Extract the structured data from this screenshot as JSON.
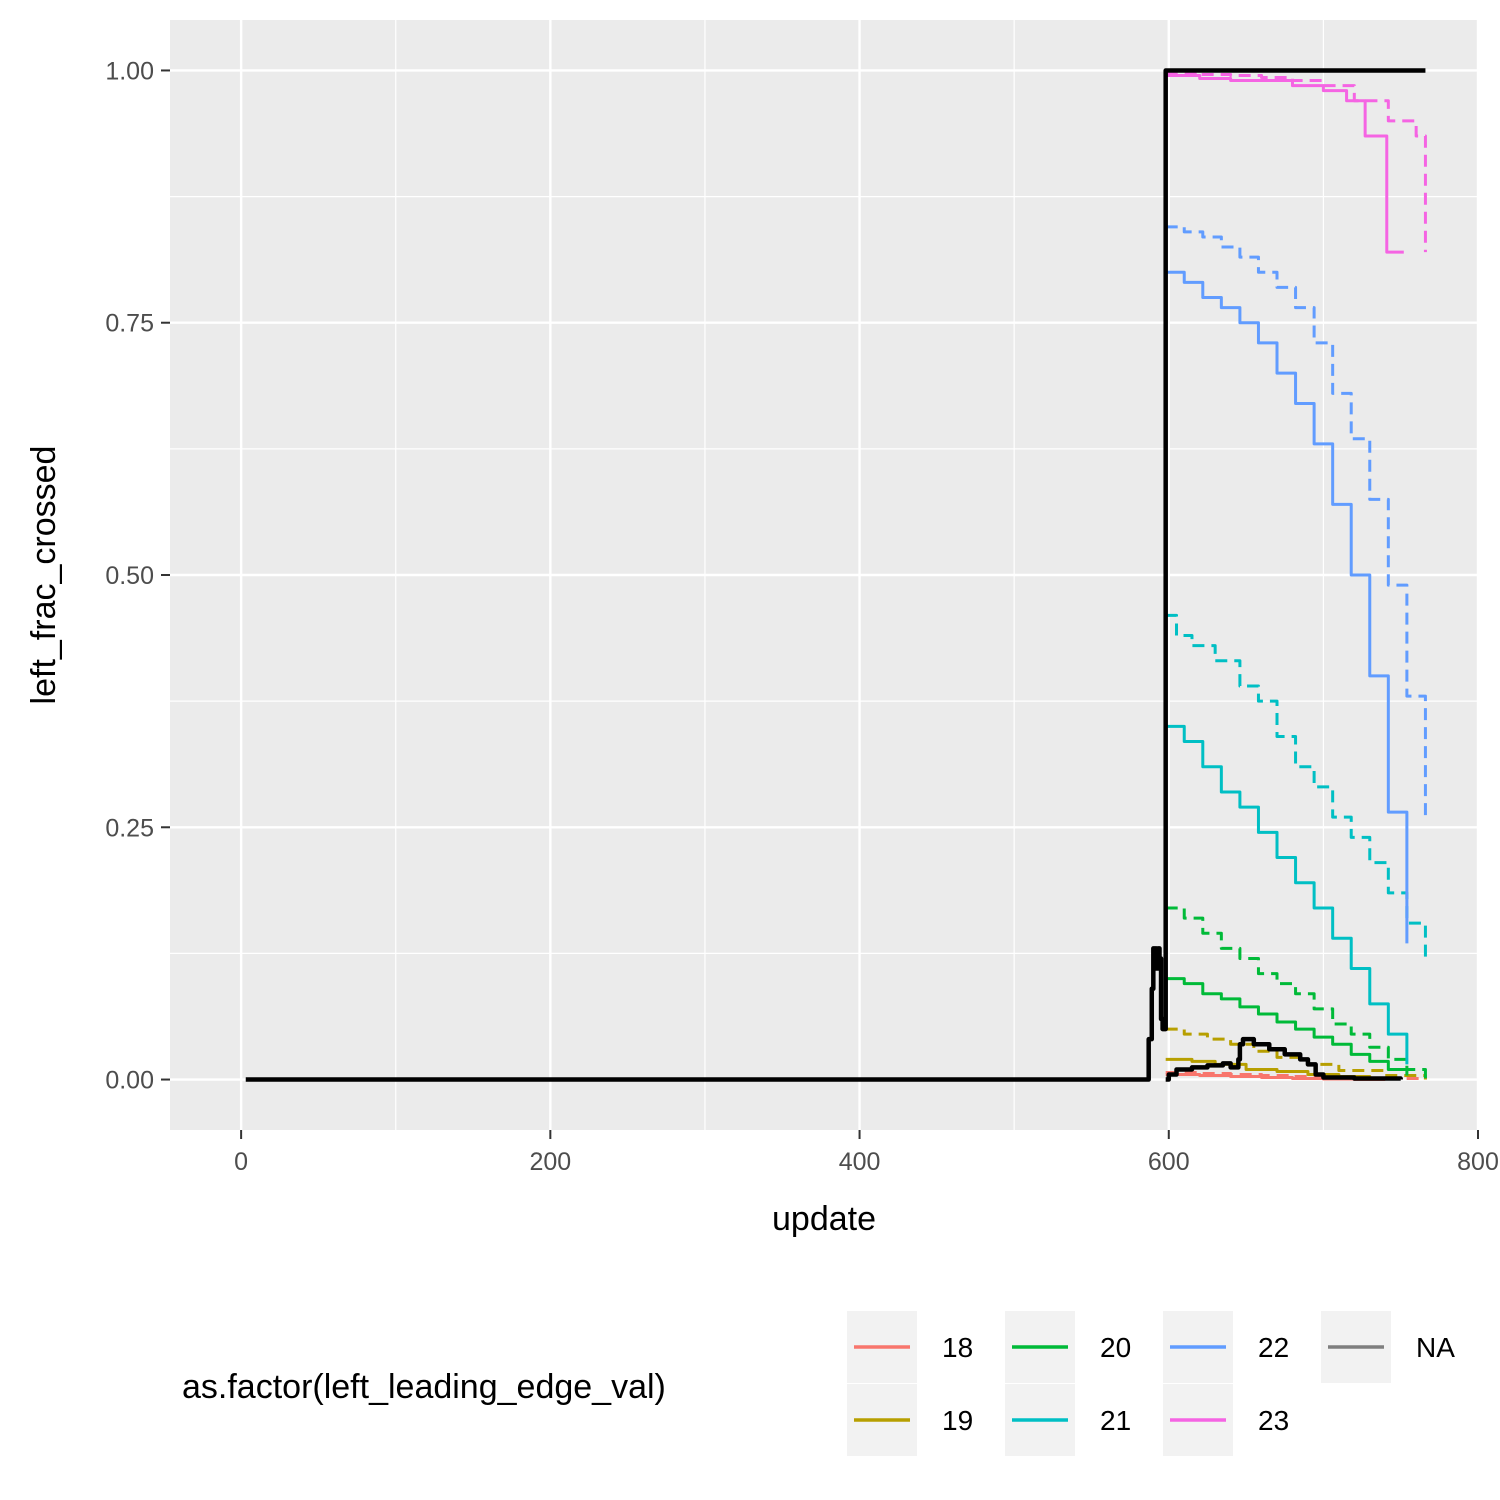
{
  "chart_data": {
    "type": "line",
    "title": "",
    "xlabel": "update",
    "ylabel": "left_frac_crossed",
    "xlim": [
      -46,
      800
    ],
    "ylim": [
      -0.05,
      1.05
    ],
    "x_ticks": [
      "0",
      "200",
      "400",
      "600",
      "800"
    ],
    "y_ticks": [
      "0.00",
      "0.25",
      "0.50",
      "0.75",
      "1.00"
    ],
    "grid": true,
    "legend": {
      "title": "as.factor(left_leading_edge_val)",
      "position": "bottom",
      "entries": [
        {
          "label": "18",
          "color": "#F8766D"
        },
        {
          "label": "19",
          "color": "#B79F00"
        },
        {
          "label": "20",
          "color": "#00BA38"
        },
        {
          "label": "21",
          "color": "#00BFC4"
        },
        {
          "label": "22",
          "color": "#619CFF"
        },
        {
          "label": "23",
          "color": "#F564E3"
        },
        {
          "label": "NA",
          "color": "#7F7F7F"
        }
      ]
    },
    "series": [
      {
        "name": "18",
        "color": "#F8766D",
        "linetype": "solid",
        "x": [
          598,
          620,
          640,
          660,
          680,
          700,
          720,
          740
        ],
        "y": [
          0.005,
          0.004,
          0.003,
          0.002,
          0.001,
          0.0005,
          0.0,
          0.0
        ]
      },
      {
        "name": "18",
        "color": "#F8766D",
        "linetype": "dashed",
        "x": [
          598,
          620,
          640,
          660,
          680,
          700,
          730,
          766
        ],
        "y": [
          0.007,
          0.006,
          0.005,
          0.004,
          0.003,
          0.002,
          0.001,
          0.0
        ]
      },
      {
        "name": "19",
        "color": "#B79F00",
        "linetype": "solid",
        "x": [
          598,
          615,
          630,
          650,
          670,
          690,
          710,
          730
        ],
        "y": [
          0.02,
          0.018,
          0.015,
          0.01,
          0.008,
          0.005,
          0.003,
          0.001
        ]
      },
      {
        "name": "19",
        "color": "#B79F00",
        "linetype": "dashed",
        "x": [
          598,
          610,
          625,
          640,
          655,
          670,
          690,
          710,
          740,
          766
        ],
        "y": [
          0.05,
          0.045,
          0.04,
          0.035,
          0.028,
          0.022,
          0.015,
          0.009,
          0.004,
          0.0
        ]
      },
      {
        "name": "20",
        "color": "#00BA38",
        "linetype": "solid",
        "x": [
          598,
          610,
          622,
          634,
          646,
          658,
          670,
          682,
          694,
          706,
          718,
          730,
          742,
          754
        ],
        "y": [
          0.1,
          0.095,
          0.085,
          0.08,
          0.072,
          0.065,
          0.057,
          0.05,
          0.042,
          0.035,
          0.025,
          0.018,
          0.01,
          0.004
        ]
      },
      {
        "name": "20",
        "color": "#00BA38",
        "linetype": "dashed",
        "x": [
          598,
          610,
          622,
          634,
          646,
          658,
          670,
          682,
          694,
          706,
          718,
          730,
          742,
          754,
          766
        ],
        "y": [
          0.17,
          0.16,
          0.145,
          0.13,
          0.12,
          0.105,
          0.095,
          0.085,
          0.07,
          0.055,
          0.045,
          0.032,
          0.02,
          0.01,
          0.0
        ]
      },
      {
        "name": "21",
        "color": "#00BFC4",
        "linetype": "solid",
        "x": [
          598,
          610,
          622,
          634,
          646,
          658,
          670,
          682,
          694,
          706,
          718,
          730,
          742,
          754
        ],
        "y": [
          0.35,
          0.335,
          0.31,
          0.285,
          0.27,
          0.245,
          0.22,
          0.195,
          0.17,
          0.14,
          0.11,
          0.075,
          0.045,
          0.015
        ]
      },
      {
        "name": "21",
        "color": "#00BFC4",
        "linetype": "dashed",
        "x": [
          598,
          605,
          615,
          630,
          646,
          658,
          670,
          682,
          694,
          706,
          718,
          730,
          742,
          754,
          766
        ],
        "y": [
          0.46,
          0.44,
          0.43,
          0.415,
          0.39,
          0.375,
          0.34,
          0.31,
          0.29,
          0.26,
          0.24,
          0.215,
          0.185,
          0.155,
          0.12
        ]
      },
      {
        "name": "22",
        "color": "#619CFF",
        "linetype": "solid",
        "x": [
          598,
          610,
          622,
          634,
          646,
          658,
          670,
          682,
          694,
          706,
          718,
          730,
          742,
          754
        ],
        "y": [
          0.8,
          0.79,
          0.775,
          0.765,
          0.75,
          0.73,
          0.7,
          0.67,
          0.63,
          0.57,
          0.5,
          0.4,
          0.265,
          0.135
        ]
      },
      {
        "name": "22",
        "color": "#619CFF",
        "linetype": "dashed",
        "x": [
          598,
          610,
          622,
          634,
          646,
          658,
          670,
          682,
          694,
          706,
          718,
          730,
          742,
          754,
          766
        ],
        "y": [
          0.845,
          0.84,
          0.835,
          0.825,
          0.815,
          0.8,
          0.785,
          0.765,
          0.73,
          0.68,
          0.635,
          0.575,
          0.49,
          0.38,
          0.26
        ]
      },
      {
        "name": "23",
        "color": "#F564E3",
        "linetype": "solid",
        "x": [
          598,
          620,
          640,
          660,
          680,
          700,
          715,
          727,
          741,
          752
        ],
        "y": [
          0.995,
          0.992,
          0.99,
          0.99,
          0.985,
          0.98,
          0.97,
          0.935,
          0.82,
          0.82
        ]
      },
      {
        "name": "23",
        "color": "#F564E3",
        "linetype": "dashed",
        "x": [
          598,
          620,
          640,
          660,
          680,
          700,
          720,
          742,
          760,
          766
        ],
        "y": [
          0.998,
          0.996,
          0.995,
          0.993,
          0.99,
          0.985,
          0.97,
          0.95,
          0.935,
          0.82
        ]
      },
      {
        "name": "NA",
        "color": "#000000",
        "linetype": "solid",
        "x": [
          3,
          100,
          200,
          300,
          400,
          500,
          580,
          584,
          587,
          589,
          590,
          592,
          593,
          594,
          595,
          596,
          597,
          598,
          598,
          650,
          700,
          766
        ],
        "y": [
          0.0,
          0.0,
          0.0,
          0.0,
          0.0,
          0.0,
          0.0,
          0.0,
          0.04,
          0.09,
          0.13,
          0.11,
          0.13,
          0.12,
          0.06,
          0.05,
          0.05,
          0.05,
          1.0,
          1.0,
          1.0,
          1.0
        ]
      },
      {
        "name": "NA",
        "color": "#000000",
        "linetype": "solid",
        "x": [
          598,
          600,
          605,
          615,
          625,
          635,
          640,
          645,
          646,
          648,
          655,
          665,
          675,
          685,
          690,
          695,
          700,
          720,
          750
        ],
        "y": [
          0.0,
          0.005,
          0.01,
          0.012,
          0.014,
          0.016,
          0.012,
          0.02,
          0.035,
          0.04,
          0.035,
          0.03,
          0.025,
          0.02,
          0.015,
          0.005,
          0.002,
          0.001,
          0.0
        ]
      }
    ]
  }
}
